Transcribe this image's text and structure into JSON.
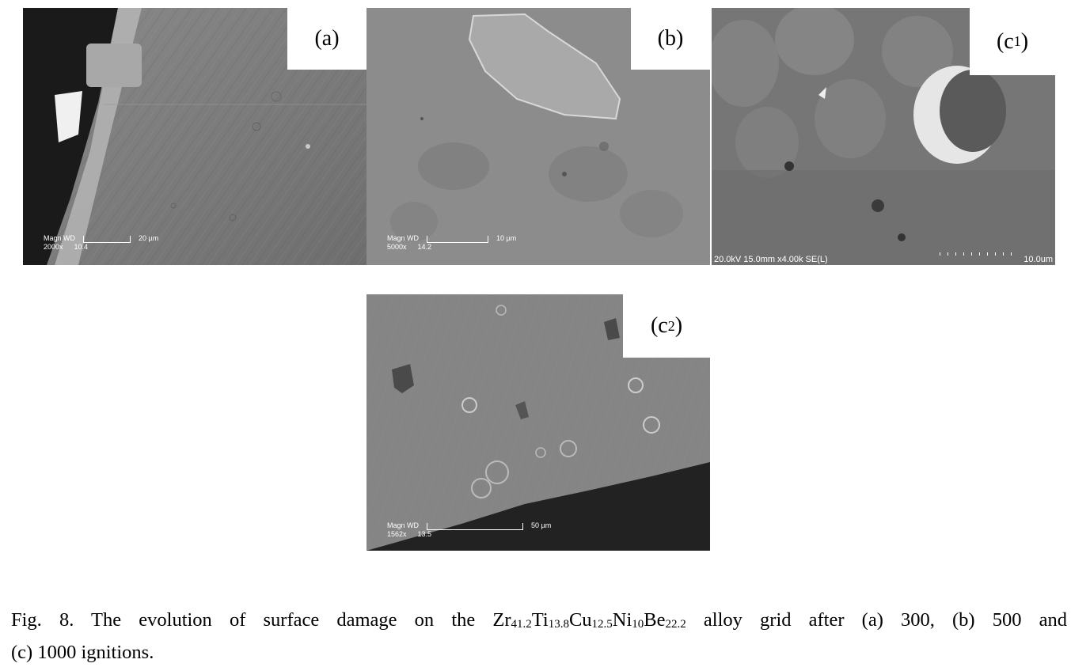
{
  "panels": {
    "a": {
      "label": "(a)",
      "scale_head": "Magn   WD",
      "scale_text": "20 µm",
      "magn": "2000x",
      "wd": "10.4"
    },
    "b": {
      "label": "(b)",
      "scale_head": "Magn   WD",
      "scale_text": "10 µm",
      "magn": "5000x",
      "wd": "14.2"
    },
    "c1": {
      "label_main": "(c",
      "label_sub": "1",
      "label_close": ")",
      "footer_left": "20.0kV 15.0mm x4.00k SE(L)",
      "footer_right": "10.0um"
    },
    "c2": {
      "label_main": "(c",
      "label_sub": "2",
      "label_close": ")",
      "scale_head": "Magn   WD",
      "scale_text": "50 µm",
      "magn": "1562x",
      "wd": "13.5"
    }
  },
  "caption": {
    "p1": "Fig. 8. The evolution of surface damage on the Zr",
    "s1": "41.2",
    "p2": "Ti",
    "s2": "13.8",
    "p3": "Cu",
    "s3": "12.5",
    "p4": "Ni",
    "s4": "10",
    "p5": "Be",
    "s5": "22.2",
    "p6": " alloy grid after (a) 300, (b) 500 and",
    "line2": "(c) 1000 ignitions."
  }
}
